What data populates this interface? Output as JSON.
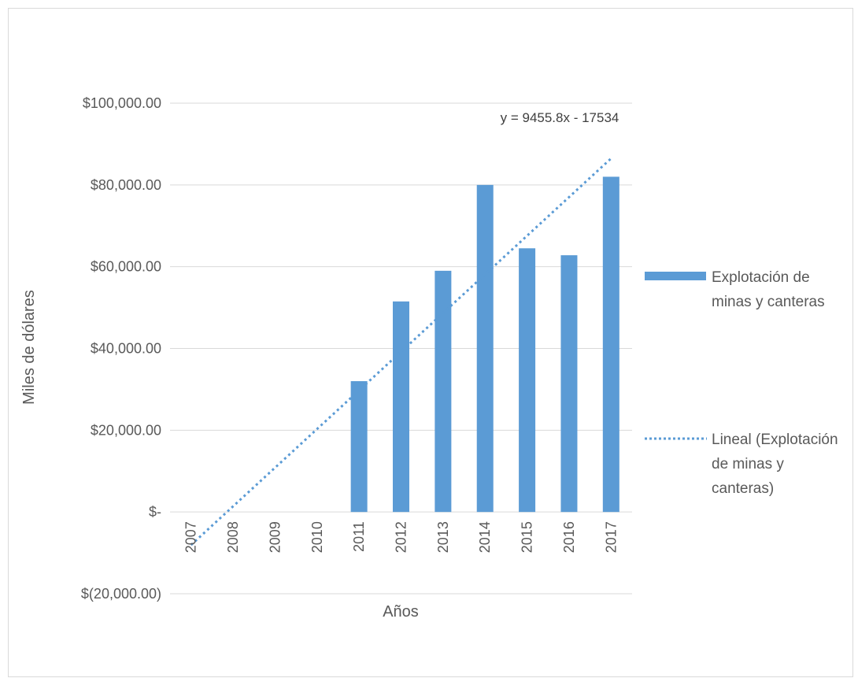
{
  "chart_data": {
    "type": "bar",
    "categories": [
      "2007",
      "2008",
      "2009",
      "2010",
      "2011",
      "2012",
      "2013",
      "2014",
      "2015",
      "2016",
      "2017"
    ],
    "series": [
      {
        "name": "Explotación de minas y canteras",
        "values": [
          0,
          0,
          0,
          0,
          32000,
          51500,
          59000,
          80000,
          64500,
          62800,
          82000
        ],
        "color": "#5b9bd5"
      }
    ],
    "trendline": {
      "type": "linear",
      "name": "Lineal (Explotación de minas y canteras)",
      "slope": 9455.8,
      "intercept": -17534,
      "equation": "y = 9455.8x - 17534",
      "color": "#5b9bd5",
      "style": "dotted"
    },
    "xlabel": "Años",
    "ylabel": "Miles de dólares",
    "ylim": [
      -20000,
      100000
    ],
    "yticks": [
      100000,
      80000,
      60000,
      40000,
      20000,
      0,
      -20000
    ],
    "ytick_labels": [
      "$100,000.00",
      "$80,000.00",
      "$60,000.00",
      "$40,000.00",
      "$20,000.00",
      "$-",
      "$(20,000.00)"
    ],
    "grid": true,
    "legend_position": "right",
    "legend_labels": [
      [
        "Explotación de",
        "minas y canteras"
      ],
      [
        "Lineal (Explotación",
        "de minas y",
        "canteras)"
      ]
    ]
  }
}
